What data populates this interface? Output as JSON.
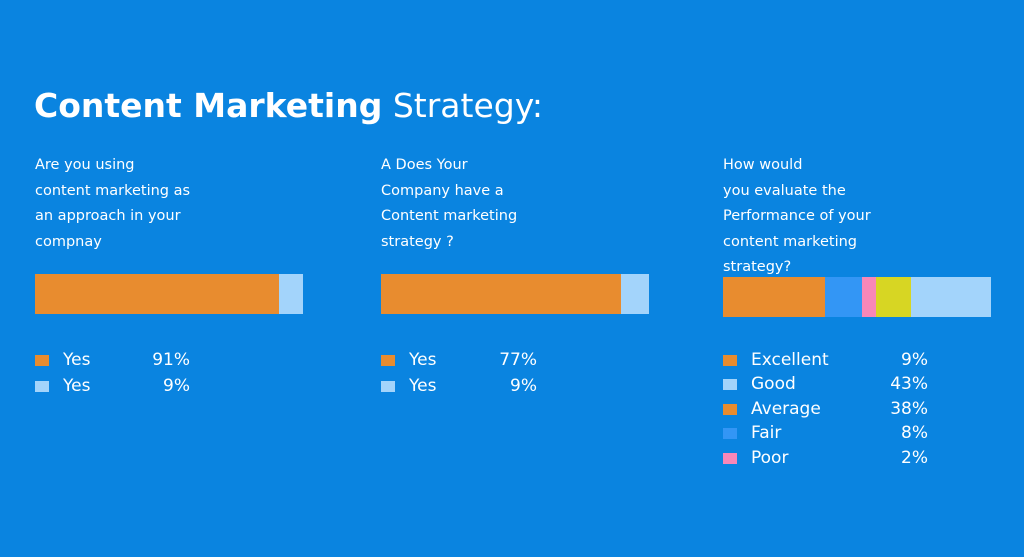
{
  "header": {
    "title_bold": "Content Marketing",
    "title_light": "Strategy:"
  },
  "colors": {
    "background": "#0a84e0",
    "orange": "#e88c2f",
    "light_blue": "#a3d4fb",
    "blue": "#3396f5",
    "pink": "#f887b8",
    "yellow": "#d7d623"
  },
  "chart_data": [
    {
      "type": "bar",
      "orientation": "horizontal-stacked",
      "title": "Are you using\ncontent marketing as\nan approach in your\ncompnay",
      "series": [
        {
          "name": "Yes",
          "value": 91,
          "value_label": "91%",
          "color": "#e88c2f"
        },
        {
          "name": "Yes",
          "value": 9,
          "value_label": "9%",
          "color": "#a3d4fb"
        }
      ]
    },
    {
      "type": "bar",
      "orientation": "horizontal-stacked",
      "title": "A Does Your\nCompany have a\nContent marketing\nstrategy ?",
      "series": [
        {
          "name": "Yes",
          "value": 77,
          "value_label": "77%",
          "color": "#e88c2f"
        },
        {
          "name": "Yes",
          "value": 9,
          "value_label": "9%",
          "color": "#a3d4fb"
        }
      ]
    },
    {
      "type": "bar",
      "orientation": "horizontal-stacked",
      "title": "How would\nyou evaluate the\nPerformance of your\ncontent marketing\nstrategy?",
      "series": [
        {
          "name": "Excellent",
          "value": 9,
          "value_label": "9%",
          "color": "#e88c2f"
        },
        {
          "name": "Good",
          "value": 43,
          "value_label": "43%",
          "color": "#a3d4fb"
        },
        {
          "name": "Average",
          "value": 38,
          "value_label": "38%",
          "color": "#e88c2f"
        },
        {
          "name": "Fair",
          "value": 8,
          "value_label": "8%",
          "color": "#3396f5"
        },
        {
          "name": "Poor",
          "value": 2,
          "value_label": "2%",
          "color": "#f887b8"
        }
      ],
      "bar_segments": [
        {
          "value": 38,
          "color": "#e88c2f"
        },
        {
          "value": 14,
          "color": "#3396f5"
        },
        {
          "value": 5,
          "color": "#f887b8"
        },
        {
          "value": 13,
          "color": "#d7d623"
        },
        {
          "value": 30,
          "color": "#a3d4fb"
        }
      ]
    }
  ]
}
